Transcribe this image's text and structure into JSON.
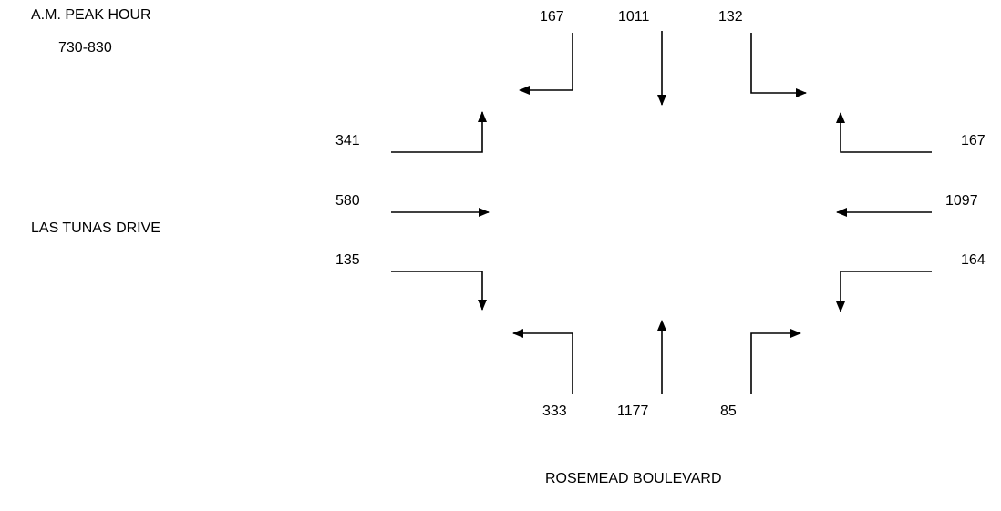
{
  "title": "A.M. PEAK HOUR",
  "time_period": "730-830",
  "streets": {
    "east_west": "LAS TUNAS DRIVE",
    "north_south": "ROSEMEAD BOULEVARD"
  },
  "volumes": {
    "southbound": {
      "right": "167",
      "through": "1011",
      "left": "132"
    },
    "eastbound": {
      "left": "341",
      "through": "580",
      "right": "135"
    },
    "westbound": {
      "right": "167",
      "through": "1097",
      "left": "164"
    },
    "northbound": {
      "left": "333",
      "through": "1177",
      "right": "85"
    }
  }
}
